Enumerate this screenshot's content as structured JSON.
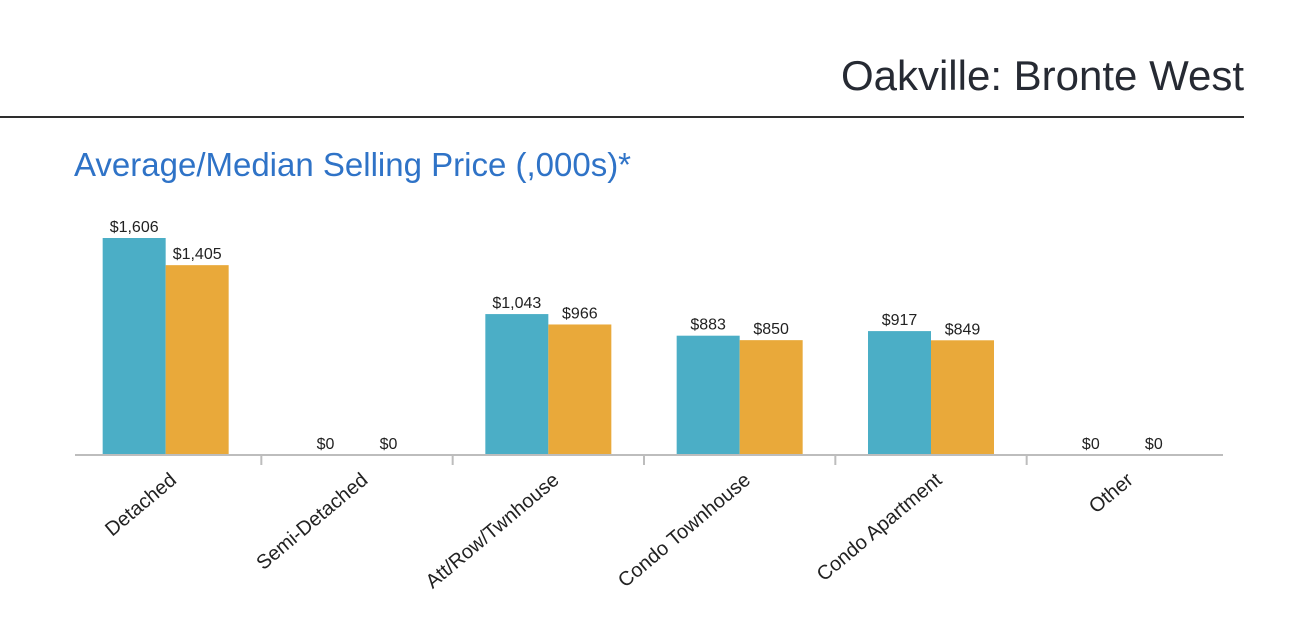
{
  "page": {
    "title": "Oakville: Bronte West",
    "section_title": "Average/Median Selling Price (,000s)*"
  },
  "colors": {
    "average": "#4baec6",
    "median": "#e9a93a",
    "axis": "#bdbdbd"
  },
  "chart_data": {
    "type": "bar",
    "title": "Average/Median Selling Price (,000s)*",
    "xlabel": "",
    "ylabel": "",
    "ylim": [
      0,
      1606
    ],
    "grid": false,
    "categories": [
      "Detached",
      "Semi-Detached",
      "Att/Row/Twnhouse",
      "Condo Townhouse",
      "Condo Apartment",
      "Other"
    ],
    "series": [
      {
        "values": [
          1606,
          0,
          1043,
          883,
          917,
          0
        ],
        "labels": [
          "$1,606",
          "$0",
          "$1,043",
          "$883",
          "$917",
          "$0"
        ],
        "color": "#4baec6"
      },
      {
        "values": [
          1405,
          0,
          966,
          850,
          849,
          0
        ],
        "labels": [
          "$1,405",
          "$0",
          "$966",
          "$850",
          "$849",
          "$0"
        ],
        "color": "#e9a93a"
      }
    ]
  }
}
